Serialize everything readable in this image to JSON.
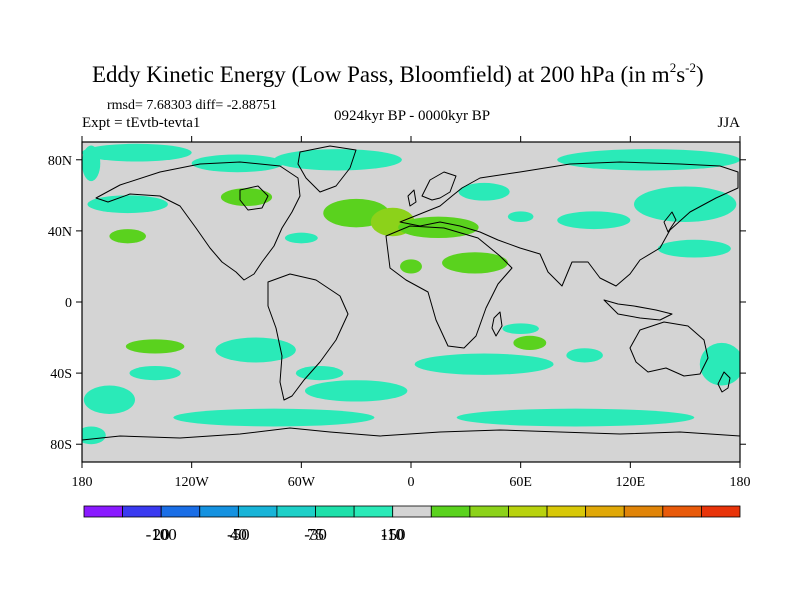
{
  "chart_data": {
    "type": "filled-contour-map",
    "title": "Eddy Kinetic Energy (Low Pass, Bloomfield) at 200 hPa (in m",
    "title_exp1": "2",
    "title_mid": "s",
    "title_exp2": "-2",
    "title_end": ")",
    "stats": "rmsd= 7.68303 diff= -2.88751",
    "subtitle_left": "Expt = tEvtb-tevta1",
    "subtitle_center": "0924kyr BP - 0000kyr BP",
    "subtitle_right": "JJA",
    "lon_range": [
      -180,
      180
    ],
    "lat_range": [
      -90,
      90
    ],
    "x_ticks": [
      {
        "lon": -180,
        "label": "180"
      },
      {
        "lon": -120,
        "label": "120W"
      },
      {
        "lon": -60,
        "label": "60W"
      },
      {
        "lon": 0,
        "label": "0"
      },
      {
        "lon": 60,
        "label": "60E"
      },
      {
        "lon": 120,
        "label": "120E"
      },
      {
        "lon": 180,
        "label": "180"
      }
    ],
    "y_ticks": [
      {
        "lat": 80,
        "label": "80N"
      },
      {
        "lat": 40,
        "label": "40N"
      },
      {
        "lat": 0,
        "label": "0"
      },
      {
        "lat": -40,
        "label": "40S"
      },
      {
        "lat": -80,
        "label": "80S"
      }
    ],
    "colorbar": {
      "levels": [
        "-100",
        "-50",
        "-30",
        "-10",
        "20",
        "40",
        "75",
        "150"
      ],
      "colors": [
        "#8a1aff",
        "#3a3af0",
        "#1a6ee6",
        "#1592e0",
        "#18b4d8",
        "#1ed0c8",
        "#1ee0aa",
        "#2aeab8",
        "#d4d4d4",
        "#5ad21e",
        "#8cd21a",
        "#b8d20e",
        "#d8c808",
        "#e0a808",
        "#e08408",
        "#e85a0a",
        "#e8340a"
      ]
    },
    "background_color": "#d4d4d4",
    "anomaly_regions": [
      {
        "lon": -150,
        "lat": 84,
        "rlon": 30,
        "rlat": 5,
        "level": "-10"
      },
      {
        "lon": -175,
        "lat": 78,
        "rlon": 5,
        "rlat": 10,
        "level": "-10"
      },
      {
        "lon": -155,
        "lat": 55,
        "rlon": 22,
        "rlat": 5,
        "level": "-10"
      },
      {
        "lon": -95,
        "lat": 78,
        "rlon": 25,
        "rlat": 5,
        "level": "-10"
      },
      {
        "lon": -40,
        "lat": 80,
        "rlon": 35,
        "rlat": 6,
        "level": "-10"
      },
      {
        "lon": -155,
        "lat": 37,
        "rlon": 10,
        "rlat": 4,
        "level": "20"
      },
      {
        "lon": -90,
        "lat": 59,
        "rlon": 14,
        "rlat": 5,
        "level": "20"
      },
      {
        "lon": -60,
        "lat": 36,
        "rlon": 9,
        "rlat": 3,
        "level": "-10"
      },
      {
        "lon": -30,
        "lat": 50,
        "rlon": 18,
        "rlat": 8,
        "level": "20"
      },
      {
        "lon": -10,
        "lat": 45,
        "rlon": 12,
        "rlat": 8,
        "level": "40"
      },
      {
        "lon": 15,
        "lat": 42,
        "rlon": 22,
        "rlat": 6,
        "level": "20"
      },
      {
        "lon": 35,
        "lat": 22,
        "rlon": 18,
        "rlat": 6,
        "level": "20"
      },
      {
        "lon": 0,
        "lat": 20,
        "rlon": 6,
        "rlat": 4,
        "level": "20"
      },
      {
        "lon": 60,
        "lat": 48,
        "rlon": 7,
        "rlat": 3,
        "level": "-10"
      },
      {
        "lon": 40,
        "lat": 62,
        "rlon": 14,
        "rlat": 5,
        "level": "-10"
      },
      {
        "lon": 100,
        "lat": 46,
        "rlon": 20,
        "rlat": 5,
        "level": "-10"
      },
      {
        "lon": 130,
        "lat": 80,
        "rlon": 50,
        "rlat": 6,
        "level": "-10"
      },
      {
        "lon": 150,
        "lat": 55,
        "rlon": 28,
        "rlat": 10,
        "level": "-10"
      },
      {
        "lon": 155,
        "lat": 30,
        "rlon": 20,
        "rlat": 5,
        "level": "-10"
      },
      {
        "lon": -140,
        "lat": -25,
        "rlon": 16,
        "rlat": 4,
        "level": "20"
      },
      {
        "lon": -85,
        "lat": -27,
        "rlon": 22,
        "rlat": 7,
        "level": "-10"
      },
      {
        "lon": -140,
        "lat": -40,
        "rlon": 14,
        "rlat": 4,
        "level": "-10"
      },
      {
        "lon": -50,
        "lat": -40,
        "rlon": 13,
        "rlat": 4,
        "level": "-10"
      },
      {
        "lon": 40,
        "lat": -35,
        "rlon": 38,
        "rlat": 6,
        "level": "-10"
      },
      {
        "lon": 60,
        "lat": -15,
        "rlon": 10,
        "rlat": 3,
        "level": "-10"
      },
      {
        "lon": 95,
        "lat": -30,
        "rlon": 10,
        "rlat": 4,
        "level": "-10"
      },
      {
        "lon": 65,
        "lat": -23,
        "rlon": 9,
        "rlat": 4,
        "level": "20"
      },
      {
        "lon": -30,
        "lat": -50,
        "rlon": 28,
        "rlat": 6,
        "level": "-10"
      },
      {
        "lon": -165,
        "lat": -55,
        "rlon": 14,
        "rlat": 8,
        "level": "-10"
      },
      {
        "lon": -75,
        "lat": -65,
        "rlon": 55,
        "rlat": 5,
        "level": "-10"
      },
      {
        "lon": 170,
        "lat": -35,
        "rlon": 12,
        "rlat": 12,
        "level": "-10"
      },
      {
        "lon": 90,
        "lat": -65,
        "rlon": 65,
        "rlat": 5,
        "level": "-10"
      },
      {
        "lon": -175,
        "lat": -75,
        "rlon": 8,
        "rlat": 5,
        "level": "-10"
      }
    ]
  }
}
